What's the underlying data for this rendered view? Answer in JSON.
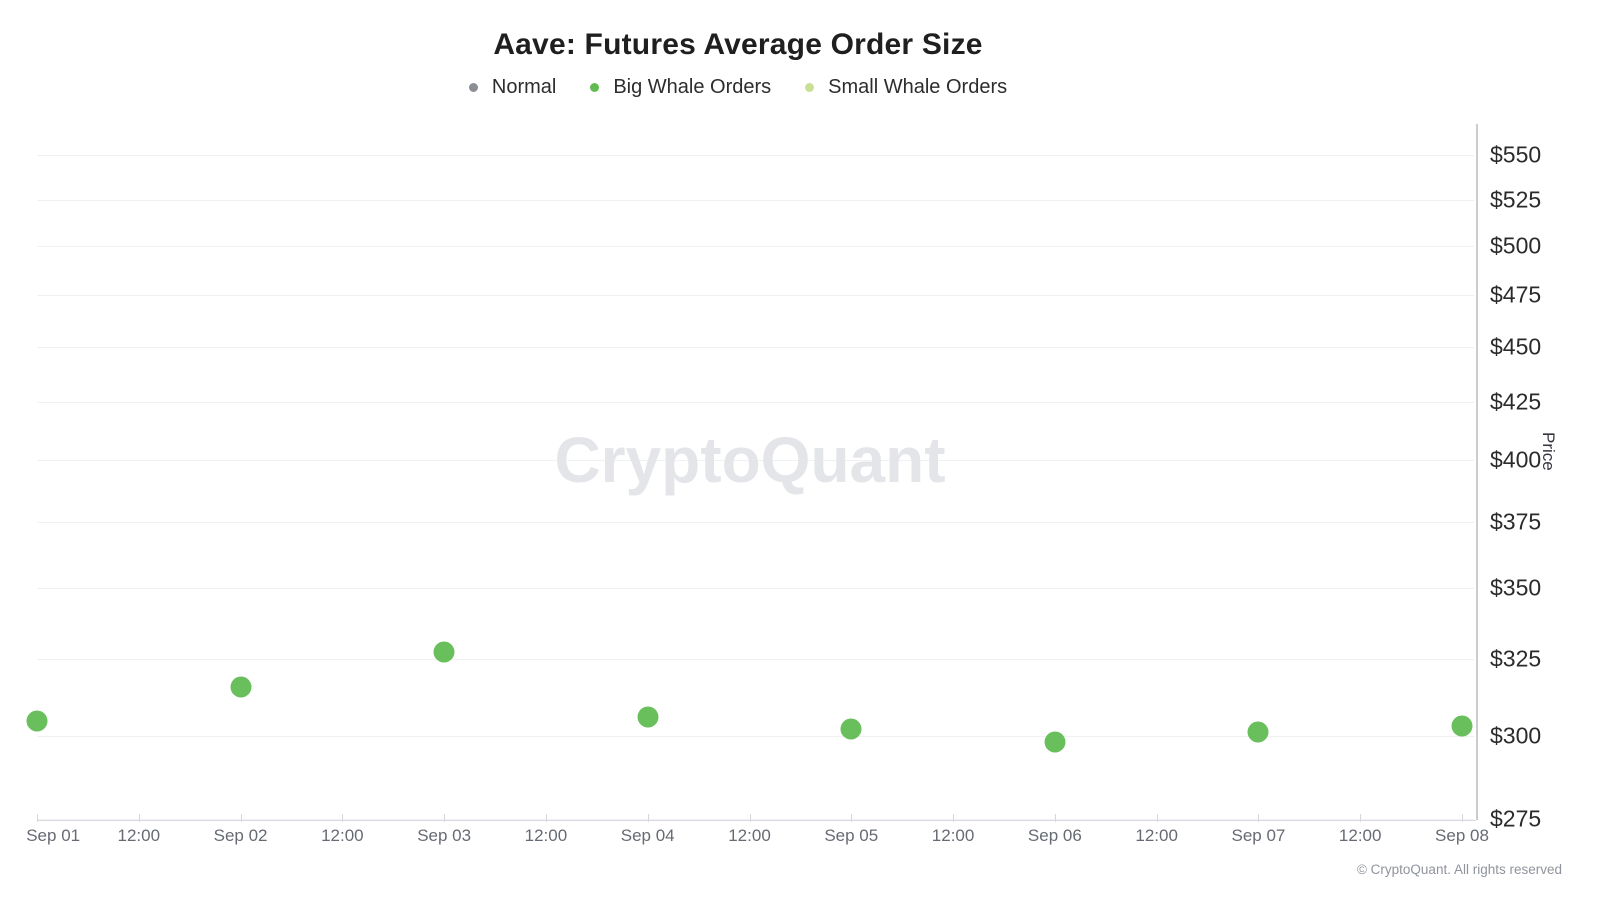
{
  "title": "Aave: Futures Average Order Size",
  "legend": [
    {
      "id": "normal",
      "label": "Normal",
      "color": "#8b8e94"
    },
    {
      "id": "big-whale-orders",
      "label": "Big Whale Orders",
      "color": "#62ba52"
    },
    {
      "id": "small-whale-orders",
      "label": "Small Whale Orders",
      "color": "#cadf96"
    }
  ],
  "watermark": "CryptoQuant",
  "footer": "© CryptoQuant. All rights reserved",
  "chart_data": {
    "type": "scatter",
    "title": "Aave: Futures Average Order Size",
    "xlabel": "",
    "ylabel": "Price",
    "y_scale": "log",
    "ylim": [
      275,
      565
    ],
    "grid": true,
    "legend_position": "top",
    "x_ticks": [
      "Sep 01",
      "12:00",
      "Sep 02",
      "12:00",
      "Sep 03",
      "12:00",
      "Sep 04",
      "12:00",
      "Sep 05",
      "12:00",
      "Sep 06",
      "12:00",
      "Sep 07",
      "12:00",
      "Sep 08"
    ],
    "y_ticks": [
      {
        "label": "$275",
        "value": 275
      },
      {
        "label": "$300",
        "value": 300
      },
      {
        "label": "$325",
        "value": 325
      },
      {
        "label": "$350",
        "value": 350
      },
      {
        "label": "$375",
        "value": 375
      },
      {
        "label": "$400",
        "value": 400
      },
      {
        "label": "$425",
        "value": 425
      },
      {
        "label": "$450",
        "value": 450
      },
      {
        "label": "$475",
        "value": 475
      },
      {
        "label": "$500",
        "value": 500
      },
      {
        "label": "$525",
        "value": 525
      },
      {
        "label": "$550",
        "value": 550
      }
    ],
    "series": [
      {
        "name": "Normal",
        "color": "#8b8e94",
        "points": []
      },
      {
        "name": "Big Whale Orders",
        "color": "#6abf5d",
        "points": [
          {
            "date": "Sep 01",
            "value": 304.5
          },
          {
            "date": "Sep 02",
            "value": 315.5
          },
          {
            "date": "Sep 03",
            "value": 327.5
          },
          {
            "date": "Sep 04",
            "value": 306
          },
          {
            "date": "Sep 05",
            "value": 302
          },
          {
            "date": "Sep 06",
            "value": 298
          },
          {
            "date": "Sep 07",
            "value": 301
          },
          {
            "date": "Sep 08",
            "value": 303
          }
        ]
      },
      {
        "name": "Small Whale Orders",
        "color": "#cadf96",
        "points": []
      }
    ]
  }
}
